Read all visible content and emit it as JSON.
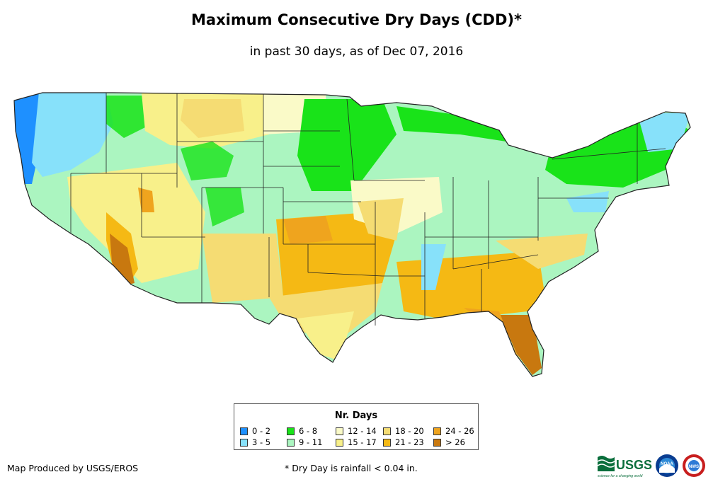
{
  "map": {
    "title": "Maximum Consecutive Dry Days (CDD)*",
    "subtitle": "in past 30 days, as of Dec 07, 2016",
    "legend": {
      "title": "Nr. Days",
      "items": [
        {
          "label": "0 - 2",
          "color": "#1e90ff"
        },
        {
          "label": "3 - 5",
          "color": "#87e1fa"
        },
        {
          "label": "6 - 8",
          "color": "#19e319"
        },
        {
          "label": "9 - 11",
          "color": "#abf5c0"
        },
        {
          "label": "12 - 14",
          "color": "#fafac8"
        },
        {
          "label": "15 - 17",
          "color": "#f8f08a"
        },
        {
          "label": "18 - 20",
          "color": "#f5dc73"
        },
        {
          "label": "21 - 23",
          "color": "#f5b914"
        },
        {
          "label": "24 - 26",
          "color": "#efa41e"
        },
        {
          "label": "> 26",
          "color": "#c8780f"
        }
      ]
    },
    "credit": "Map Produced by USGS/EROS",
    "footnote": "* Dry Day is rainfall < 0.04 in.",
    "logos": {
      "usgs": "USGS",
      "usgs_tagline": "science for a changing world",
      "noaa": "NOAA",
      "nws": "NWS"
    }
  }
}
